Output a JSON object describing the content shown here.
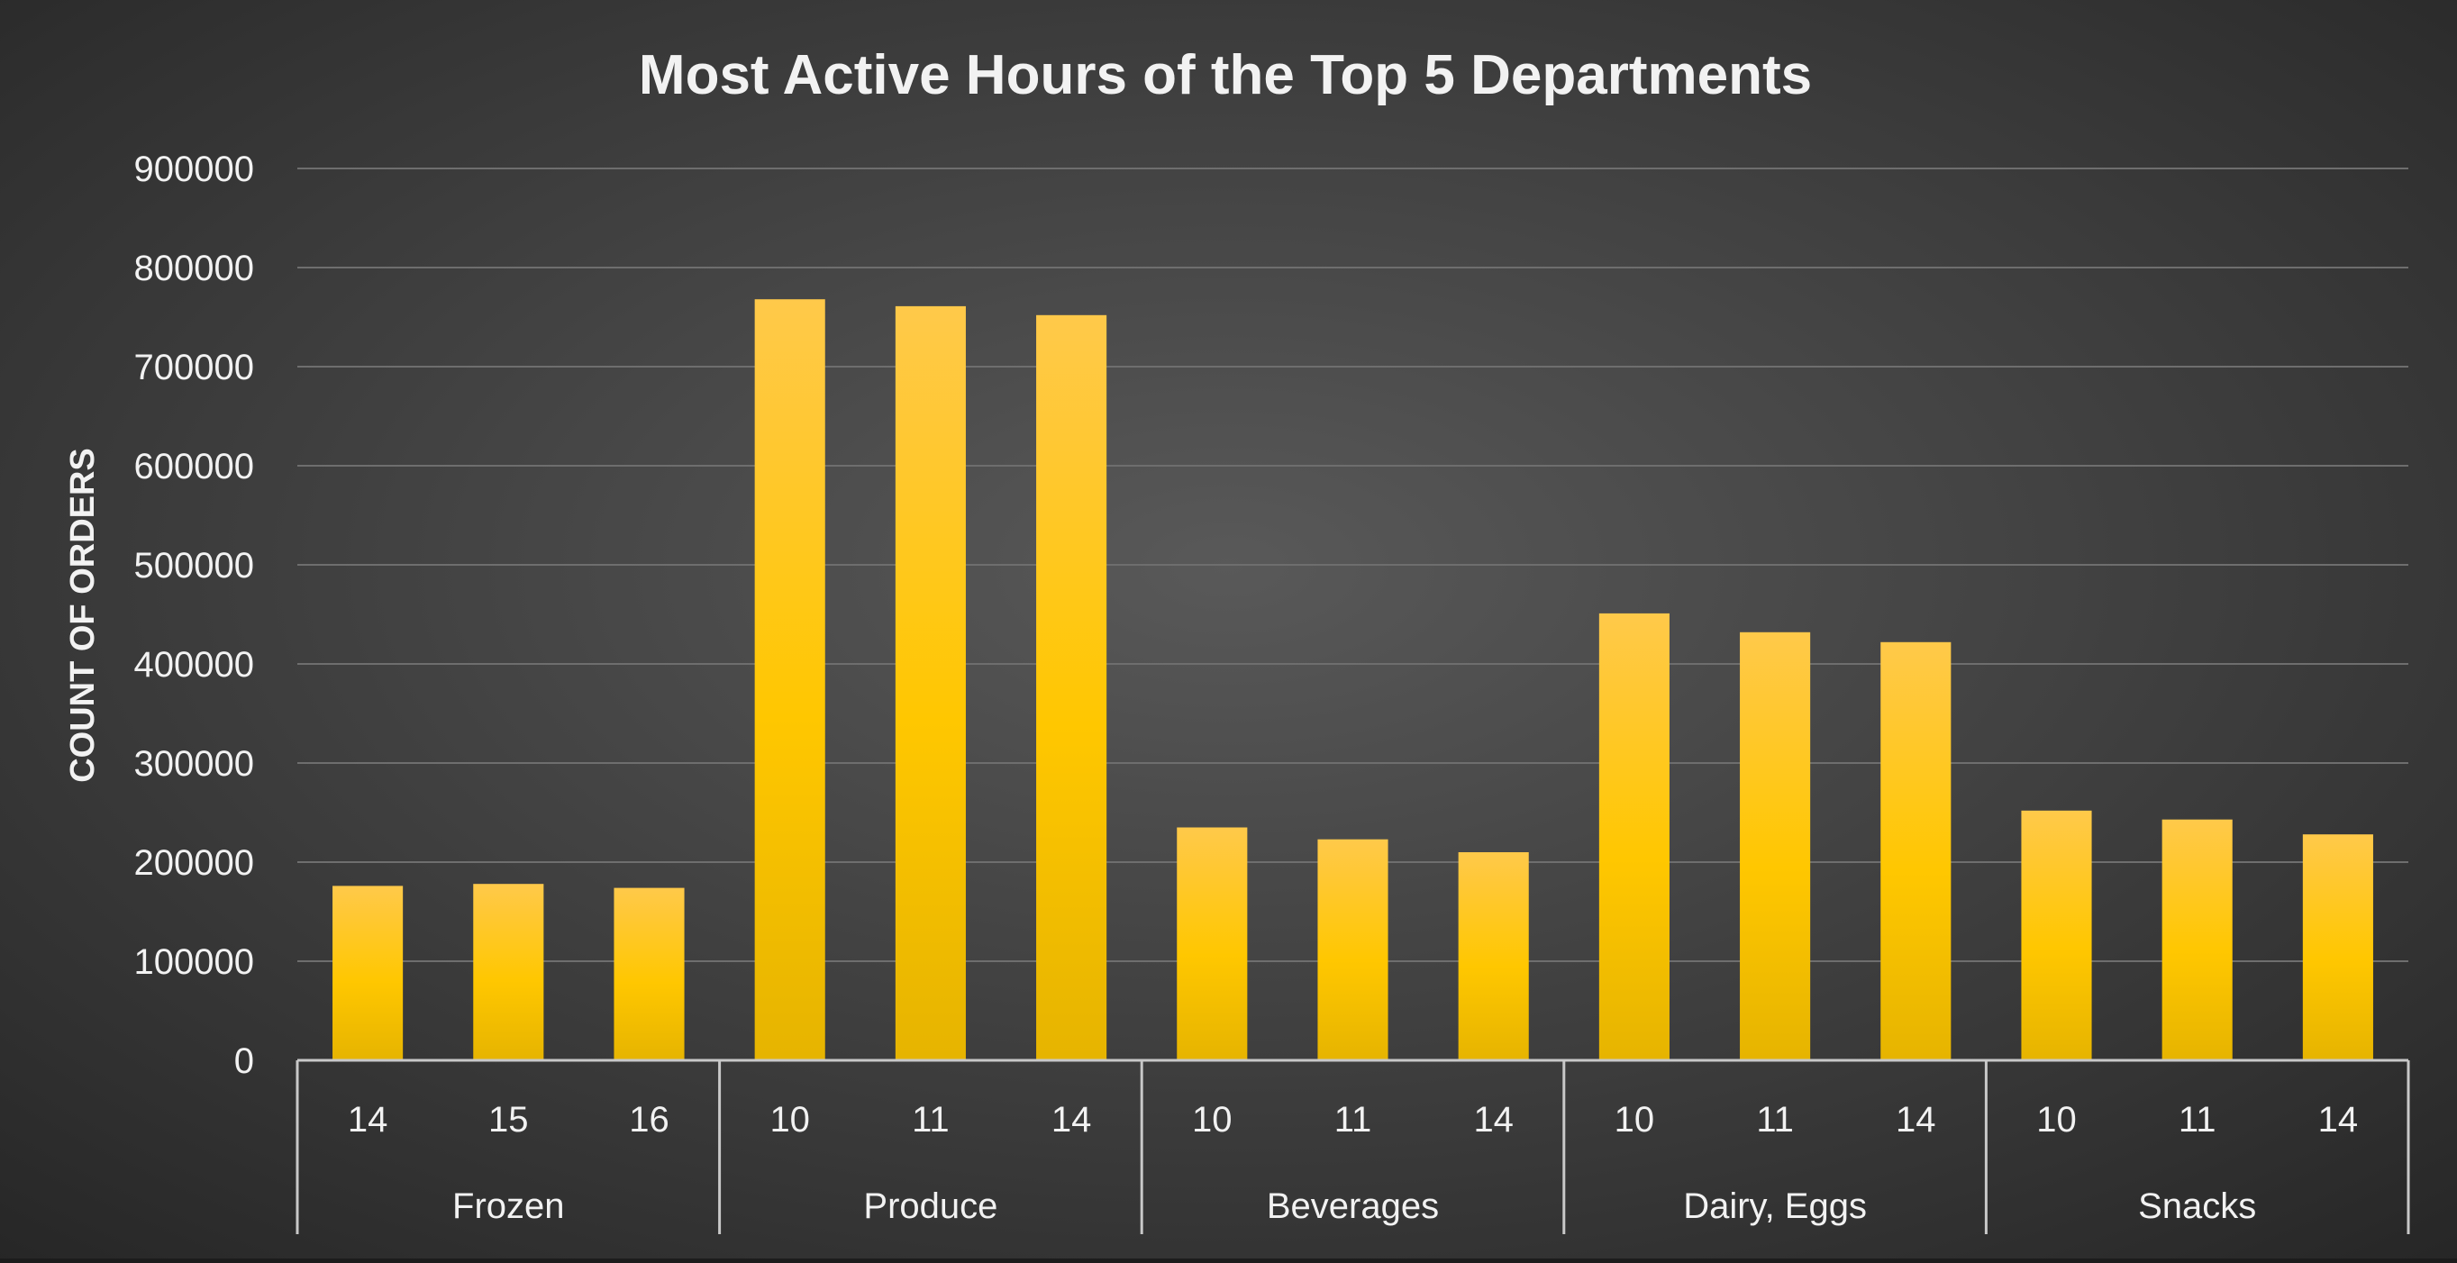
{
  "chart_data": {
    "type": "bar",
    "title": "Most Active Hours of the Top 5 Departments",
    "xlabel": "",
    "ylabel": "COUNT OF ORDERS",
    "ylim": [
      0,
      900000
    ],
    "yticks": [
      "0",
      "100000",
      "200000",
      "300000",
      "400000",
      "500000",
      "600000",
      "700000",
      "800000",
      "900000"
    ],
    "grid": true,
    "legend": "none",
    "groups": [
      {
        "name": "Frozen",
        "categories": [
          "14",
          "15",
          "16"
        ],
        "values": [
          176000,
          178000,
          174000
        ]
      },
      {
        "name": "Produce",
        "categories": [
          "10",
          "11",
          "14"
        ],
        "values": [
          768000,
          761000,
          752000
        ]
      },
      {
        "name": "Beverages",
        "categories": [
          "10",
          "11",
          "14"
        ],
        "values": [
          235000,
          223000,
          210000
        ]
      },
      {
        "name": "Dairy, Eggs",
        "categories": [
          "10",
          "11",
          "14"
        ],
        "values": [
          451000,
          432000,
          422000
        ]
      },
      {
        "name": "Snacks",
        "categories": [
          "10",
          "11",
          "14"
        ],
        "values": [
          252000,
          243000,
          228000
        ]
      }
    ]
  },
  "colors": {
    "bar_top": "#ffc94a",
    "bar_mid": "#ffc700",
    "bar_bottom": "#e6b400",
    "background_center": "#595959",
    "background_edge": "#262626",
    "gridline": "#6e6e6e",
    "axis": "#c8c8c8",
    "text": "#f2f2f2"
  }
}
